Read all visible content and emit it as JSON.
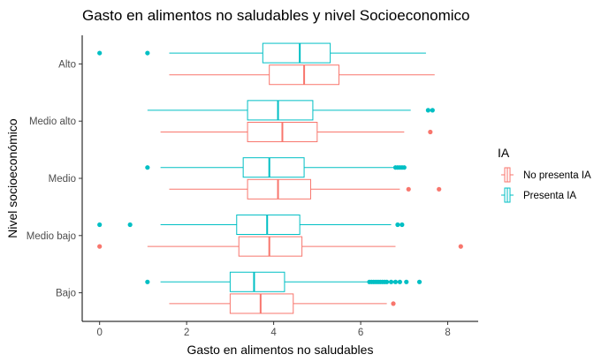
{
  "chart_data": {
    "type": "boxplot",
    "orientation": "horizontal",
    "title": "Gasto en alimentos no saludables y nivel Socioeconomico",
    "xlabel": "Gasto en alimentos no saludables",
    "ylabel": "Nivel socioeconómico",
    "xlim": [
      -0.4,
      8.7
    ],
    "xticks": [
      0,
      2,
      4,
      6,
      8
    ],
    "grid": false,
    "legend": {
      "title": "IA",
      "position": "right"
    },
    "categories": [
      "Alto",
      "Medio alto",
      "Medio",
      "Medio bajo",
      "Bajo"
    ],
    "series": [
      {
        "name": "No presenta IA",
        "color": "#F8766D",
        "boxes": [
          {
            "category": "Alto",
            "whisker_low": 1.6,
            "q1": 3.9,
            "median": 4.7,
            "q3": 5.5,
            "whisker_high": 7.7,
            "outliers": []
          },
          {
            "category": "Medio alto",
            "whisker_low": 1.4,
            "q1": 3.4,
            "median": 4.2,
            "q3": 5.0,
            "whisker_high": 7.0,
            "outliers": [
              7.6
            ]
          },
          {
            "category": "Medio",
            "whisker_low": 1.6,
            "q1": 3.4,
            "median": 4.1,
            "q3": 4.85,
            "whisker_high": 6.9,
            "outliers": [
              7.1,
              7.8
            ]
          },
          {
            "category": "Medio bajo",
            "whisker_low": 1.1,
            "q1": 3.2,
            "median": 3.9,
            "q3": 4.65,
            "whisker_high": 6.8,
            "outliers": [
              0.0,
              8.3
            ]
          },
          {
            "category": "Bajo",
            "whisker_low": 1.6,
            "q1": 3.0,
            "median": 3.7,
            "q3": 4.45,
            "whisker_high": 6.6,
            "outliers": [
              6.75
            ]
          }
        ]
      },
      {
        "name": "Presenta IA",
        "color": "#00BFC4",
        "boxes": [
          {
            "category": "Alto",
            "whisker_low": 1.6,
            "q1": 3.75,
            "median": 4.6,
            "q3": 5.3,
            "whisker_high": 7.5,
            "outliers": [
              0.0,
              1.1
            ]
          },
          {
            "category": "Medio alto",
            "whisker_low": 1.1,
            "q1": 3.4,
            "median": 4.1,
            "q3": 4.9,
            "whisker_high": 7.15,
            "outliers": [
              7.55,
              7.65
            ]
          },
          {
            "category": "Medio",
            "whisker_low": 1.4,
            "q1": 3.3,
            "median": 3.9,
            "q3": 4.7,
            "whisker_high": 6.75,
            "outliers": [
              1.1,
              6.8,
              6.85,
              6.9,
              6.95,
              7.0
            ]
          },
          {
            "category": "Medio bajo",
            "whisker_low": 1.4,
            "q1": 3.15,
            "median": 3.85,
            "q3": 4.6,
            "whisker_high": 6.7,
            "outliers": [
              0.0,
              0.7,
              6.85,
              6.95
            ]
          },
          {
            "category": "Bajo",
            "whisker_low": 1.4,
            "q1": 3.0,
            "median": 3.55,
            "q3": 4.25,
            "whisker_high": 6.15,
            "outliers": [
              1.1,
              6.2,
              6.25,
              6.3,
              6.35,
              6.4,
              6.45,
              6.5,
              6.55,
              6.6,
              6.7,
              6.8,
              6.9,
              7.05,
              7.35
            ]
          }
        ]
      }
    ]
  }
}
